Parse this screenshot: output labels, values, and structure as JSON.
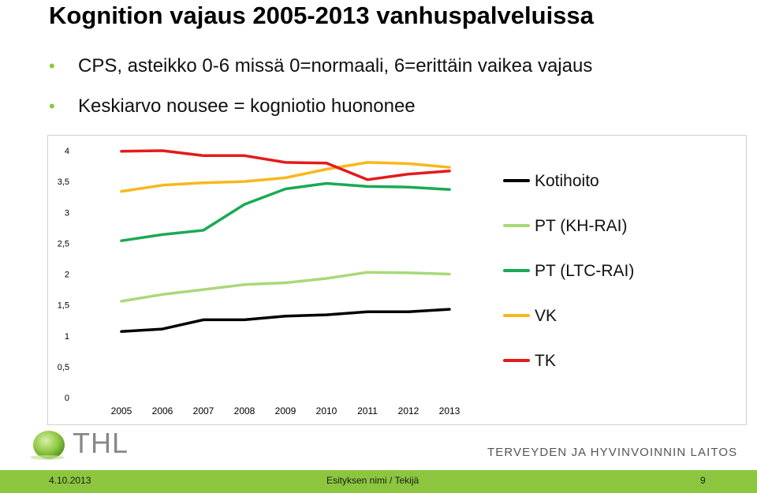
{
  "slide": {
    "title": "Kognition vajaus 2005-2013 vanhuspalveluissa",
    "bullets": [
      "CPS, asteikko 0-6 missä 0=normaali, 6=erittäin vaikea vajaus",
      "Keskiarvo nousee = kogniotio huononee"
    ]
  },
  "logo": {
    "text": "THL",
    "wordmark": "TERVEYDEN JA HYVINVOINNIN LAITOS"
  },
  "footer": {
    "date": "4.10.2013",
    "center": "Esityksen nimi / Tekijä",
    "page": "9"
  },
  "colors": {
    "accent": "#8cc63f",
    "footer_bg": "#8cc63f"
  },
  "chart_data": {
    "type": "line",
    "title": "",
    "xlabel": "",
    "ylabel": "",
    "categories": [
      "2005",
      "2006",
      "2007",
      "2008",
      "2009",
      "2010",
      "2011",
      "2012",
      "2013"
    ],
    "ylim": [
      0,
      4
    ],
    "yticks": [
      "0",
      "0,5",
      "1",
      "1,5",
      "2",
      "2,5",
      "3",
      "3,5",
      "4"
    ],
    "ytick_values": [
      0,
      0.5,
      1,
      1.5,
      2,
      2.5,
      3,
      3.5,
      4
    ],
    "grid": false,
    "legend_position": "right",
    "series": [
      {
        "name": "Kotihoito",
        "color": "#000000",
        "values": [
          1.07,
          1.11,
          1.26,
          1.26,
          1.32,
          1.34,
          1.39,
          1.39,
          1.43
        ]
      },
      {
        "name": "PT (KH-RAI)",
        "color": "#a8d978",
        "values": [
          1.56,
          1.67,
          1.75,
          1.83,
          1.86,
          1.93,
          2.03,
          2.02,
          2.0
        ]
      },
      {
        "name": "PT (LTC-RAI)",
        "color": "#1aaa55",
        "values": [
          2.54,
          2.64,
          2.71,
          3.13,
          3.38,
          3.47,
          3.42,
          3.41,
          3.37
        ]
      },
      {
        "name": "VK",
        "color": "#f7b81c",
        "values": [
          3.34,
          3.44,
          3.48,
          3.5,
          3.56,
          3.7,
          3.81,
          3.79,
          3.73
        ]
      },
      {
        "name": "TK",
        "color": "#e31b1b",
        "values": [
          3.99,
          4.0,
          3.92,
          3.92,
          3.81,
          3.8,
          3.53,
          3.62,
          3.67
        ]
      }
    ]
  }
}
